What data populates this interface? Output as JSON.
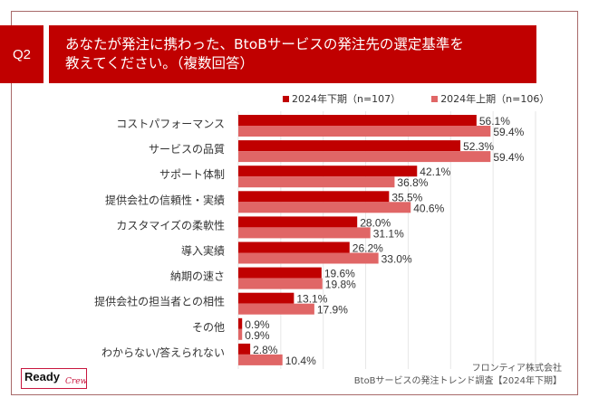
{
  "header": {
    "question_id": "Q2",
    "title_line1": "あなたが発注に携わった、BtoBサービスの発注先の選定基準を",
    "title_line2": "教えてください。（複数回答）"
  },
  "colors": {
    "accent": "#c00000",
    "series_2024_h2": "#c00000",
    "series_2024_h1": "#e06666",
    "gridline": "#e6e6e6",
    "frame": "#a86a6a"
  },
  "chart_data": {
    "type": "bar",
    "orientation": "horizontal",
    "title": "あなたが発注に携わった、BtoBサービスの発注先の選定基準を教えてください。（複数回答）",
    "xlabel": "",
    "ylabel": "",
    "xlim": [
      0,
      70
    ],
    "grid": true,
    "gridline_step": 10,
    "legend_position": "top-right",
    "value_format": "percent",
    "categories": [
      "コストパフォーマンス",
      "サービスの品質",
      "サポート体制",
      "提供会社の信頼性・実績",
      "カスタマイズの柔軟性",
      "導入実績",
      "納期の速さ",
      "提供会社の担当者との相性",
      "その他",
      "わからない/答えられない"
    ],
    "series": [
      {
        "name": "2024年下期（n=107）",
        "color": "#c00000",
        "values": [
          56.1,
          52.3,
          42.1,
          35.5,
          28.0,
          26.2,
          19.6,
          13.1,
          0.9,
          2.8
        ],
        "labels": [
          "56.1%",
          "52.3%",
          "42.1%",
          "35.5%",
          "28.0%",
          "26.2%",
          "19.6%",
          "13.1%",
          "0.9%",
          "2.8%"
        ]
      },
      {
        "name": "2024年上期（n=106）",
        "color": "#e06666",
        "values": [
          59.4,
          59.4,
          36.8,
          40.6,
          31.1,
          33.0,
          19.8,
          17.9,
          0.9,
          10.4
        ],
        "labels": [
          "59.4%",
          "59.4%",
          "36.8%",
          "40.6%",
          "31.1%",
          "33.0%",
          "19.8%",
          "17.9%",
          "0.9%",
          "10.4%"
        ]
      }
    ]
  },
  "legend": {
    "items": [
      {
        "label": "2024年下期（n=107）",
        "color": "#c00000"
      },
      {
        "label": "2024年上期（n=106）",
        "color": "#e06666"
      }
    ]
  },
  "footer": {
    "company": "フロンティア株式会社",
    "survey": "BtoBサービスの発注トレンド調査【2024年下期】"
  },
  "logo": {
    "word1": "Ready",
    "word2": "Crew"
  }
}
